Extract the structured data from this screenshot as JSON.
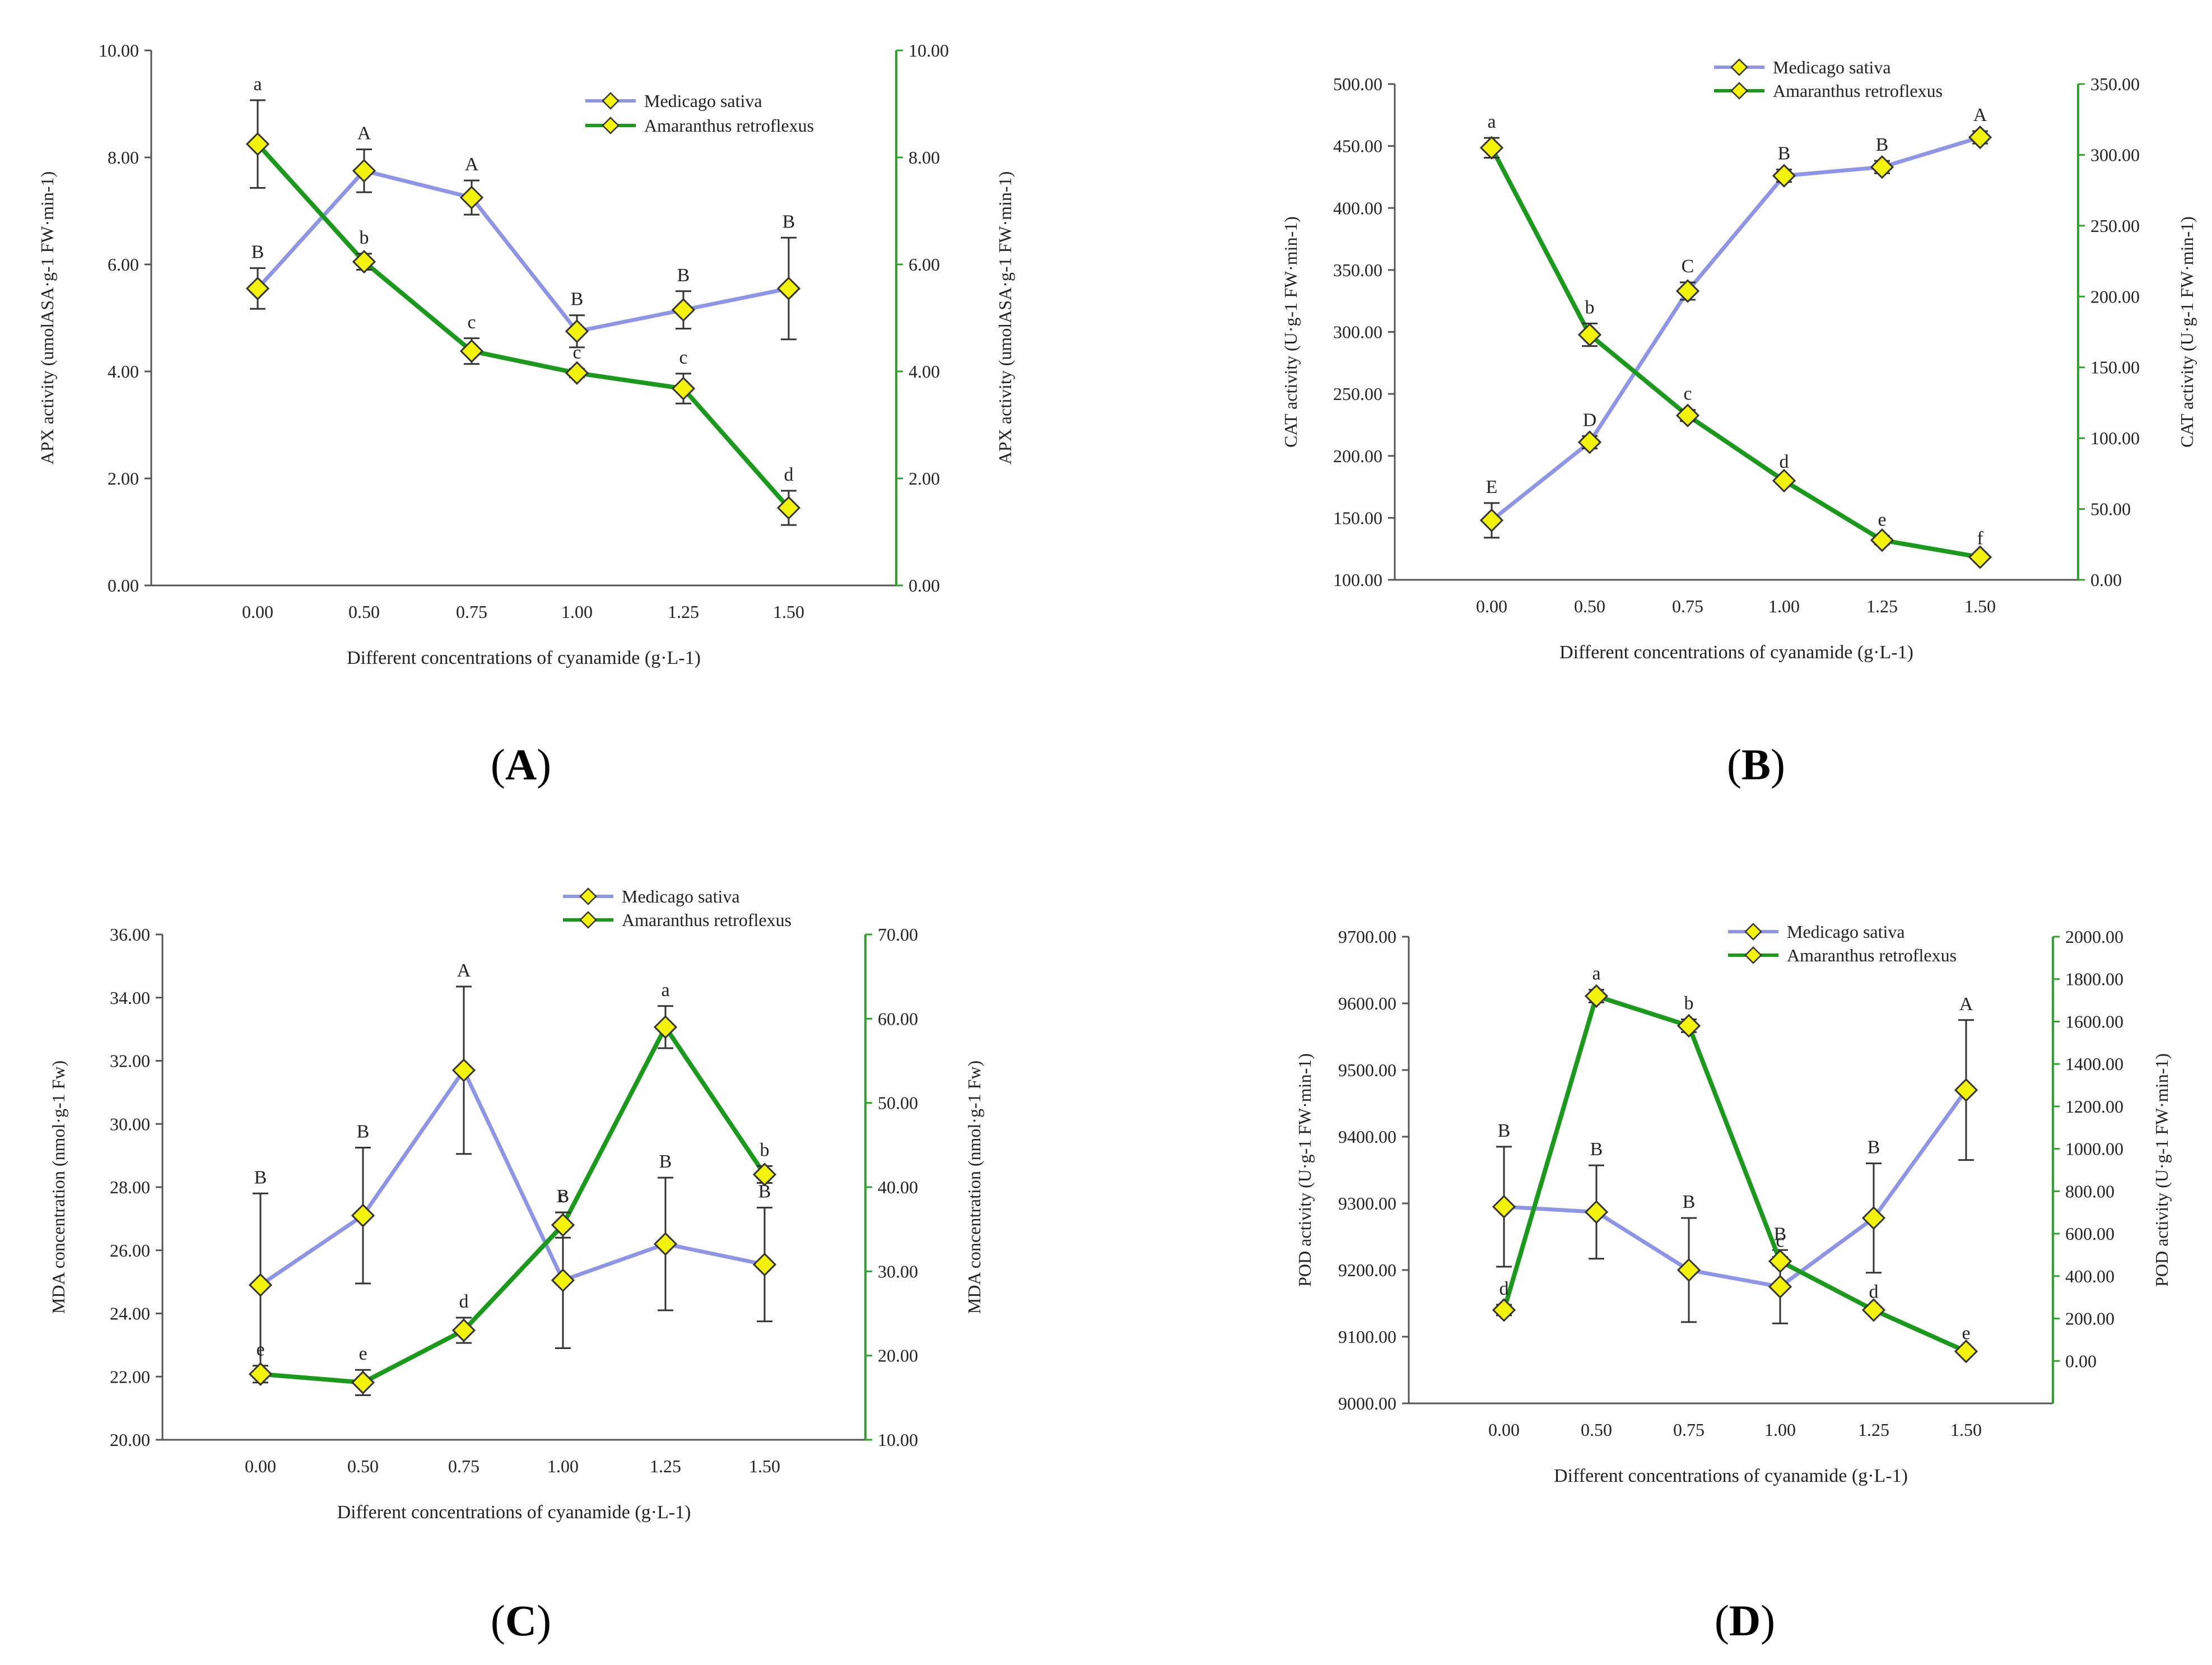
{
  "chart_data": [
    {
      "type": "line",
      "panel": "A",
      "xlabel": "Different concentrations of cyanamide (g·L-1)",
      "ylabel_left": "APX activity (umolASA·g-1 FW·min-1)",
      "ylabel_right": "APX activity (umolASA·g-1 FW·min-1)",
      "categories": [
        "0.00",
        "0.50",
        "0.75",
        "1.00",
        "1.25",
        "1.50"
      ],
      "ylim_left": [
        0,
        10
      ],
      "ylim_right": [
        0,
        10
      ],
      "yticks_left": [
        "0.00",
        "2.00",
        "4.00",
        "6.00",
        "8.00",
        "10.00"
      ],
      "yticks_right": [
        "0.00",
        "2.00",
        "4.00",
        "6.00",
        "8.00",
        "10.00"
      ],
      "legend": "top-right",
      "series": [
        {
          "name": "Medicago sativa",
          "axis": "left",
          "color": "#8f95e6",
          "values": [
            5.55,
            7.75,
            7.25,
            4.75,
            5.15,
            5.55
          ],
          "errors": [
            0.38,
            0.4,
            0.32,
            0.3,
            0.35,
            0.95
          ],
          "letters": [
            "B",
            "A",
            "A",
            "B",
            "B",
            "B"
          ]
        },
        {
          "name": "Amaranthus retroflexus",
          "axis": "right",
          "color": "#1a9a1a",
          "values": [
            8.25,
            6.05,
            4.38,
            3.97,
            3.68,
            1.45
          ],
          "errors": [
            0.82,
            0.15,
            0.24,
            0.08,
            0.28,
            0.32
          ],
          "letters": [
            "a",
            "b",
            "c",
            "c",
            "c",
            "d"
          ]
        }
      ]
    },
    {
      "type": "line",
      "panel": "B",
      "xlabel": "Different concentrations of cyanamide (g·L-1)",
      "ylabel_left": "CAT activity (U·g-1 FW·min-1)",
      "ylabel_right": "CAT activity (U·g-1 FW·min-1)",
      "categories": [
        "0.00",
        "0.50",
        "0.75",
        "1.00",
        "1.25",
        "1.50"
      ],
      "ylim_left": [
        100,
        500
      ],
      "ylim_right": [
        0,
        350
      ],
      "yticks_left": [
        "100.00",
        "150.00",
        "200.00",
        "250.00",
        "300.00",
        "350.00",
        "400.00",
        "450.00",
        "500.00"
      ],
      "yticks_right": [
        "0.00",
        "50.00",
        "100.00",
        "150.00",
        "200.00",
        "250.00",
        "300.00",
        "350.00"
      ],
      "legend": "top-center",
      "series": [
        {
          "name": "Medicago sativa",
          "axis": "left",
          "color": "#8f95e6",
          "values": [
            148,
            211,
            333,
            426,
            433,
            457
          ],
          "errors": [
            14,
            5,
            7,
            5,
            5,
            5
          ],
          "letters": [
            "E",
            "D",
            "C",
            "B",
            "B",
            "A"
          ]
        },
        {
          "name": "Amaranthus retroflexus",
          "axis": "right",
          "color": "#1a9a1a",
          "values": [
            305,
            173,
            116,
            70,
            28,
            16
          ],
          "errors": [
            7,
            8,
            4,
            2,
            3,
            2
          ],
          "letters": [
            "a",
            "b",
            "c",
            "d",
            "e",
            "f"
          ]
        }
      ]
    },
    {
      "type": "line",
      "panel": "C",
      "xlabel": "Different concentrations of cyanamide (g·L-1)",
      "ylabel_left": "MDA concentration (nmol·g-1 Fw)",
      "ylabel_right": "MDA concentration (nmol·g-1 Fw)",
      "categories": [
        "0.00",
        "0.50",
        "0.75",
        "1.00",
        "1.25",
        "1.50"
      ],
      "ylim_left": [
        20,
        36
      ],
      "ylim_right": [
        10,
        70
      ],
      "yticks_left": [
        "20.00",
        "22.00",
        "24.00",
        "26.00",
        "28.00",
        "30.00",
        "32.00",
        "34.00",
        "36.00"
      ],
      "yticks_right": [
        "10.00",
        "20.00",
        "30.00",
        "40.00",
        "50.00",
        "60.00",
        "70.00"
      ],
      "legend": "top-right",
      "series": [
        {
          "name": "Medicago sativa",
          "axis": "left",
          "color": "#8f95e6",
          "values": [
            24.9,
            27.1,
            31.7,
            25.05,
            26.2,
            25.55
          ],
          "errors": [
            2.9,
            2.15,
            2.65,
            2.15,
            2.1,
            1.8
          ],
          "letters": [
            "B",
            "B",
            "A",
            "B",
            "B",
            "B"
          ]
        },
        {
          "name": "Amaranthus retroflexus",
          "axis": "right",
          "color": "#1a9a1a",
          "values": [
            17.8,
            16.8,
            23.0,
            35.5,
            59.0,
            41.5
          ],
          "errors": [
            1.0,
            1.5,
            1.5,
            1.5,
            2.5,
            1.0
          ],
          "letters": [
            "e",
            "e",
            "d",
            "c",
            "a",
            "b"
          ]
        }
      ]
    },
    {
      "type": "line",
      "panel": "D",
      "xlabel": "Different concentrations of cyanamide (g·L-1)",
      "ylabel_left": "POD activity (U·g-1 FW·min-1)",
      "ylabel_right": "POD activity (U·g-1 FW·min-1)",
      "categories": [
        "0.00",
        "0.50",
        "0.75",
        "1.00",
        "1.25",
        "1.50"
      ],
      "ylim_left": [
        9000,
        9700
      ],
      "ylim_right": [
        -200,
        2000
      ],
      "yticks_left": [
        "9000.00",
        "9100.00",
        "9200.00",
        "9300.00",
        "9400.00",
        "9500.00",
        "9600.00",
        "9700.00"
      ],
      "yticks_right": [
        "0.00",
        "200.00",
        "400.00",
        "600.00",
        "800.00",
        "1000.00",
        "1200.00",
        "1400.00",
        "1600.00",
        "1800.00",
        "2000.00"
      ],
      "legend": "top-center",
      "series": [
        {
          "name": "Medicago sativa",
          "axis": "left",
          "color": "#8f95e6",
          "values": [
            9295,
            9287,
            9200,
            9175,
            9278,
            9470
          ],
          "errors": [
            90,
            70,
            78,
            55,
            82,
            105
          ],
          "letters": [
            "B",
            "B",
            "B",
            "B",
            "B",
            "A"
          ]
        },
        {
          "name": "Amaranthus retroflexus",
          "axis": "right",
          "color": "#1a9a1a",
          "values": [
            240,
            1720,
            1580,
            470,
            240,
            45
          ],
          "errors": [
            25,
            30,
            30,
            20,
            10,
            10
          ],
          "letters": [
            "d",
            "a",
            "b",
            "c",
            "d",
            "e"
          ]
        }
      ]
    }
  ],
  "panel_labels": [
    "A",
    "B",
    "C",
    "D"
  ]
}
